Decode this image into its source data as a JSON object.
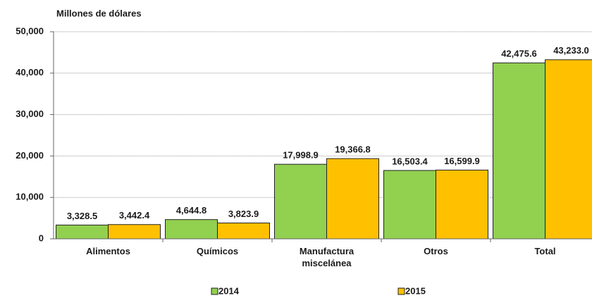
{
  "chart_data": {
    "type": "bar",
    "y_axis_label": "Millones de dólares",
    "categories": [
      "Alimentos",
      "Químicos",
      "Manufactura miscelánea",
      "Otros",
      "Total"
    ],
    "series": [
      {
        "name": "2014",
        "color": "#92d050",
        "values": [
          3328.5,
          4644.8,
          17998.9,
          16503.4,
          42475.6
        ],
        "value_labels": [
          "3,328.5",
          "4,644.8",
          "17,998.9",
          "16,503.4",
          "42,475.6"
        ]
      },
      {
        "name": "2015",
        "color": "#ffc000",
        "values": [
          3442.4,
          3823.9,
          19366.8,
          16599.9,
          43233.0
        ],
        "value_labels": [
          "3,442.4",
          "3,823.9",
          "19,366.8",
          "16,599.9",
          "43,233.0"
        ]
      }
    ],
    "ylim": [
      0,
      50000
    ],
    "yticks": [
      0,
      {
        "value": 10000,
        "label": "10,000"
      },
      {
        "value": 20000,
        "label": "20,000"
      },
      {
        "value": 30000,
        "label": "30,000"
      },
      {
        "value": 40000,
        "label": "40,000"
      },
      {
        "value": 50000,
        "label": "50,000"
      }
    ],
    "grid": true
  }
}
